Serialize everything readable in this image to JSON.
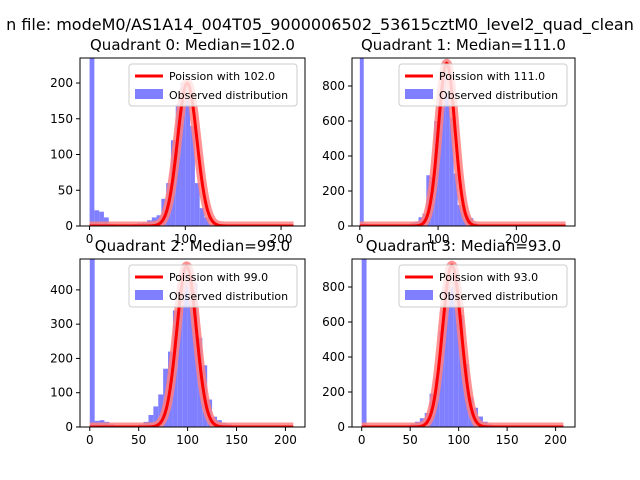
{
  "figure": {
    "suptitle": "n file: modeM0/AS1A14_004T05_9000006502_53615cztM0_level2_quad_clean"
  },
  "colors": {
    "histogram": "#7f7fff",
    "poisson_line": "#ff0000",
    "poisson_glow": "#ff8080"
  },
  "chart_data": [
    {
      "type": "bar",
      "title": "Quadrant 0: Median=102.0",
      "xlim": [
        -10,
        225
      ],
      "ylim": [
        0,
        235
      ],
      "xticks": [
        0,
        100,
        200
      ],
      "yticks": [
        0,
        50,
        100,
        150,
        200
      ],
      "grid": false,
      "legend_position": "upper right",
      "bin_width": 5,
      "bins": [
        {
          "x": 0,
          "y": 235
        },
        {
          "x": 5,
          "y": 22
        },
        {
          "x": 10,
          "y": 20
        },
        {
          "x": 15,
          "y": 12
        },
        {
          "x": 20,
          "y": 3
        },
        {
          "x": 25,
          "y": 2
        },
        {
          "x": 30,
          "y": 1
        },
        {
          "x": 40,
          "y": 2
        },
        {
          "x": 45,
          "y": 3
        },
        {
          "x": 50,
          "y": 4
        },
        {
          "x": 55,
          "y": 5
        },
        {
          "x": 60,
          "y": 8
        },
        {
          "x": 65,
          "y": 12
        },
        {
          "x": 70,
          "y": 15
        },
        {
          "x": 75,
          "y": 38
        },
        {
          "x": 80,
          "y": 60
        },
        {
          "x": 85,
          "y": 120
        },
        {
          "x": 90,
          "y": 170
        },
        {
          "x": 95,
          "y": 200
        },
        {
          "x": 100,
          "y": 180
        },
        {
          "x": 105,
          "y": 140
        },
        {
          "x": 110,
          "y": 60
        },
        {
          "x": 115,
          "y": 25
        },
        {
          "x": 120,
          "y": 12
        },
        {
          "x": 125,
          "y": 3
        },
        {
          "x": 130,
          "y": 1
        }
      ],
      "poisson": {
        "lambda": 102.0,
        "peak": 200
      },
      "series": [
        {
          "name": "Poission with 102.0",
          "kind": "line"
        },
        {
          "name": "Observed distribution",
          "kind": "histogram"
        }
      ]
    },
    {
      "type": "bar",
      "title": "Quadrant 1: Median=111.0",
      "xlim": [
        -10,
        275
      ],
      "ylim": [
        0,
        960
      ],
      "xticks": [
        0,
        100,
        200
      ],
      "yticks": [
        0,
        200,
        400,
        600,
        800
      ],
      "grid": false,
      "legend_position": "upper right",
      "bin_width": 5,
      "bins": [
        {
          "x": 0,
          "y": 960
        },
        {
          "x": 5,
          "y": 15
        },
        {
          "x": 10,
          "y": 8
        },
        {
          "x": 15,
          "y": 4
        },
        {
          "x": 60,
          "y": 10
        },
        {
          "x": 65,
          "y": 20
        },
        {
          "x": 70,
          "y": 25
        },
        {
          "x": 75,
          "y": 50
        },
        {
          "x": 80,
          "y": 70
        },
        {
          "x": 85,
          "y": 290
        },
        {
          "x": 90,
          "y": 280
        },
        {
          "x": 95,
          "y": 600
        },
        {
          "x": 100,
          "y": 730
        },
        {
          "x": 105,
          "y": 870
        },
        {
          "x": 110,
          "y": 760
        },
        {
          "x": 115,
          "y": 620
        },
        {
          "x": 120,
          "y": 300
        },
        {
          "x": 125,
          "y": 120
        },
        {
          "x": 130,
          "y": 100
        },
        {
          "x": 135,
          "y": 60
        },
        {
          "x": 140,
          "y": 45
        },
        {
          "x": 145,
          "y": 20
        },
        {
          "x": 150,
          "y": 5
        }
      ],
      "poisson": {
        "lambda": 111.0,
        "peak": 930
      },
      "series": [
        {
          "name": "Poission with 111.0",
          "kind": "line"
        },
        {
          "name": "Observed distribution",
          "kind": "histogram"
        }
      ]
    },
    {
      "type": "bar",
      "title": "Quadrant 2: Median=99.0",
      "xlim": [
        -10,
        220
      ],
      "ylim": [
        0,
        490
      ],
      "xticks": [
        0,
        50,
        100,
        150,
        200
      ],
      "yticks": [
        0,
        100,
        200,
        300,
        400
      ],
      "grid": false,
      "legend_position": "upper right",
      "bin_width": 5,
      "bins": [
        {
          "x": 0,
          "y": 490
        },
        {
          "x": 5,
          "y": 18
        },
        {
          "x": 10,
          "y": 20
        },
        {
          "x": 15,
          "y": 15
        },
        {
          "x": 20,
          "y": 8
        },
        {
          "x": 25,
          "y": 5
        },
        {
          "x": 30,
          "y": 3
        },
        {
          "x": 45,
          "y": 5
        },
        {
          "x": 50,
          "y": 8
        },
        {
          "x": 55,
          "y": 15
        },
        {
          "x": 60,
          "y": 35
        },
        {
          "x": 65,
          "y": 60
        },
        {
          "x": 70,
          "y": 95
        },
        {
          "x": 75,
          "y": 170
        },
        {
          "x": 80,
          "y": 220
        },
        {
          "x": 85,
          "y": 340
        },
        {
          "x": 90,
          "y": 360
        },
        {
          "x": 95,
          "y": 470
        },
        {
          "x": 100,
          "y": 440
        },
        {
          "x": 105,
          "y": 420
        },
        {
          "x": 110,
          "y": 260
        },
        {
          "x": 115,
          "y": 180
        },
        {
          "x": 120,
          "y": 80
        },
        {
          "x": 125,
          "y": 30
        },
        {
          "x": 130,
          "y": 20
        },
        {
          "x": 135,
          "y": 12
        },
        {
          "x": 140,
          "y": 8
        },
        {
          "x": 145,
          "y": 3
        }
      ],
      "poisson": {
        "lambda": 99.0,
        "peak": 470
      },
      "series": [
        {
          "name": "Poission with 99.0",
          "kind": "line"
        },
        {
          "name": "Observed distribution",
          "kind": "histogram"
        }
      ]
    },
    {
      "type": "bar",
      "title": "Quadrant 3: Median=93.0",
      "xlim": [
        -10,
        220
      ],
      "ylim": [
        0,
        960
      ],
      "xticks": [
        0,
        50,
        100,
        150,
        200
      ],
      "yticks": [
        0,
        200,
        400,
        600,
        800
      ],
      "grid": false,
      "legend_position": "upper right",
      "bin_width": 5,
      "bins": [
        {
          "x": 0,
          "y": 960
        },
        {
          "x": 5,
          "y": 8
        },
        {
          "x": 10,
          "y": 5
        },
        {
          "x": 45,
          "y": 10
        },
        {
          "x": 50,
          "y": 20
        },
        {
          "x": 55,
          "y": 30
        },
        {
          "x": 60,
          "y": 50
        },
        {
          "x": 65,
          "y": 80
        },
        {
          "x": 70,
          "y": 190
        },
        {
          "x": 75,
          "y": 280
        },
        {
          "x": 80,
          "y": 550
        },
        {
          "x": 85,
          "y": 810
        },
        {
          "x": 90,
          "y": 800
        },
        {
          "x": 95,
          "y": 900
        },
        {
          "x": 100,
          "y": 640
        },
        {
          "x": 105,
          "y": 360
        },
        {
          "x": 110,
          "y": 170
        },
        {
          "x": 115,
          "y": 110
        },
        {
          "x": 120,
          "y": 60
        },
        {
          "x": 125,
          "y": 30
        },
        {
          "x": 130,
          "y": 15
        },
        {
          "x": 135,
          "y": 5
        }
      ],
      "poisson": {
        "lambda": 93.0,
        "peak": 925
      },
      "series": [
        {
          "name": "Poission with 93.0",
          "kind": "line"
        },
        {
          "name": "Observed distribution",
          "kind": "histogram"
        }
      ]
    }
  ]
}
